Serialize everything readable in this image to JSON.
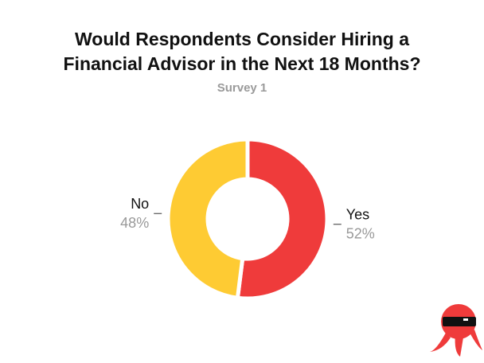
{
  "chart_data": {
    "type": "pie",
    "title": "Would Respondents Consider Hiring a Financial Advisor in the Next 18 Months?",
    "subtitle": "Survey 1",
    "categories": [
      "Yes",
      "No"
    ],
    "values": [
      52,
      48
    ],
    "value_labels": [
      "52%",
      "48%"
    ],
    "colors": [
      "#ef3b3b",
      "#fecb33"
    ],
    "donut": true
  }
}
